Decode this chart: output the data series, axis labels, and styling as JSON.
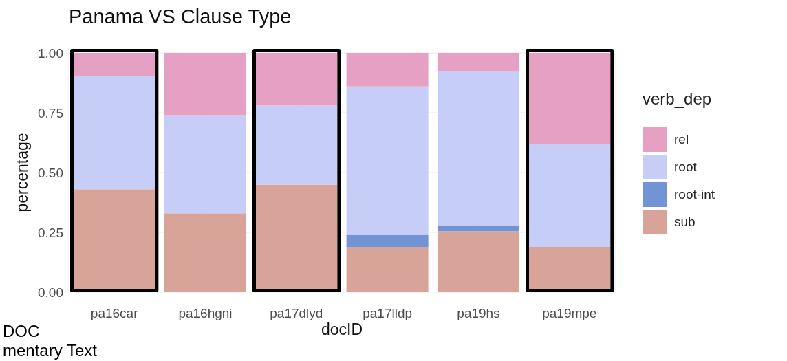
{
  "chart_data": {
    "type": "bar",
    "title": "Panama VS Clause Type",
    "xlabel": "docID",
    "ylabel": "percentage",
    "legend_title": "verb_dep",
    "categories": [
      "pa16car",
      "pa16hgni",
      "pa17dlyd",
      "pa17lldp",
      "pa19hs",
      "pa19mpe"
    ],
    "stacked": true,
    "series": [
      {
        "name": "sub",
        "color": "#d8a499",
        "values": [
          0.43,
          0.33,
          0.45,
          0.19,
          0.255,
          0.19
        ]
      },
      {
        "name": "root-int",
        "color": "#7294d4",
        "values": [
          0,
          0,
          0,
          0.05,
          0.025,
          0
        ]
      },
      {
        "name": "root",
        "color": "#c6cdf7",
        "values": [
          0.475,
          0.41,
          0.33,
          0.62,
          0.645,
          0.43
        ]
      },
      {
        "name": "rel",
        "color": "#e6a0c4",
        "values": [
          0.095,
          0.26,
          0.22,
          0.14,
          0.075,
          0.38
        ]
      }
    ],
    "ylim": [
      0,
      1
    ],
    "yticks": [
      {
        "value": 0,
        "label": "0.00"
      },
      {
        "value": 0.25,
        "label": "0.25"
      },
      {
        "value": 0.5,
        "label": "0.50"
      },
      {
        "value": 0.75,
        "label": "0.75"
      },
      {
        "value": 1,
        "label": "1.00"
      }
    ],
    "grid": true,
    "legend": "right",
    "annotations": [
      "DOC",
      "mentary Text"
    ]
  }
}
